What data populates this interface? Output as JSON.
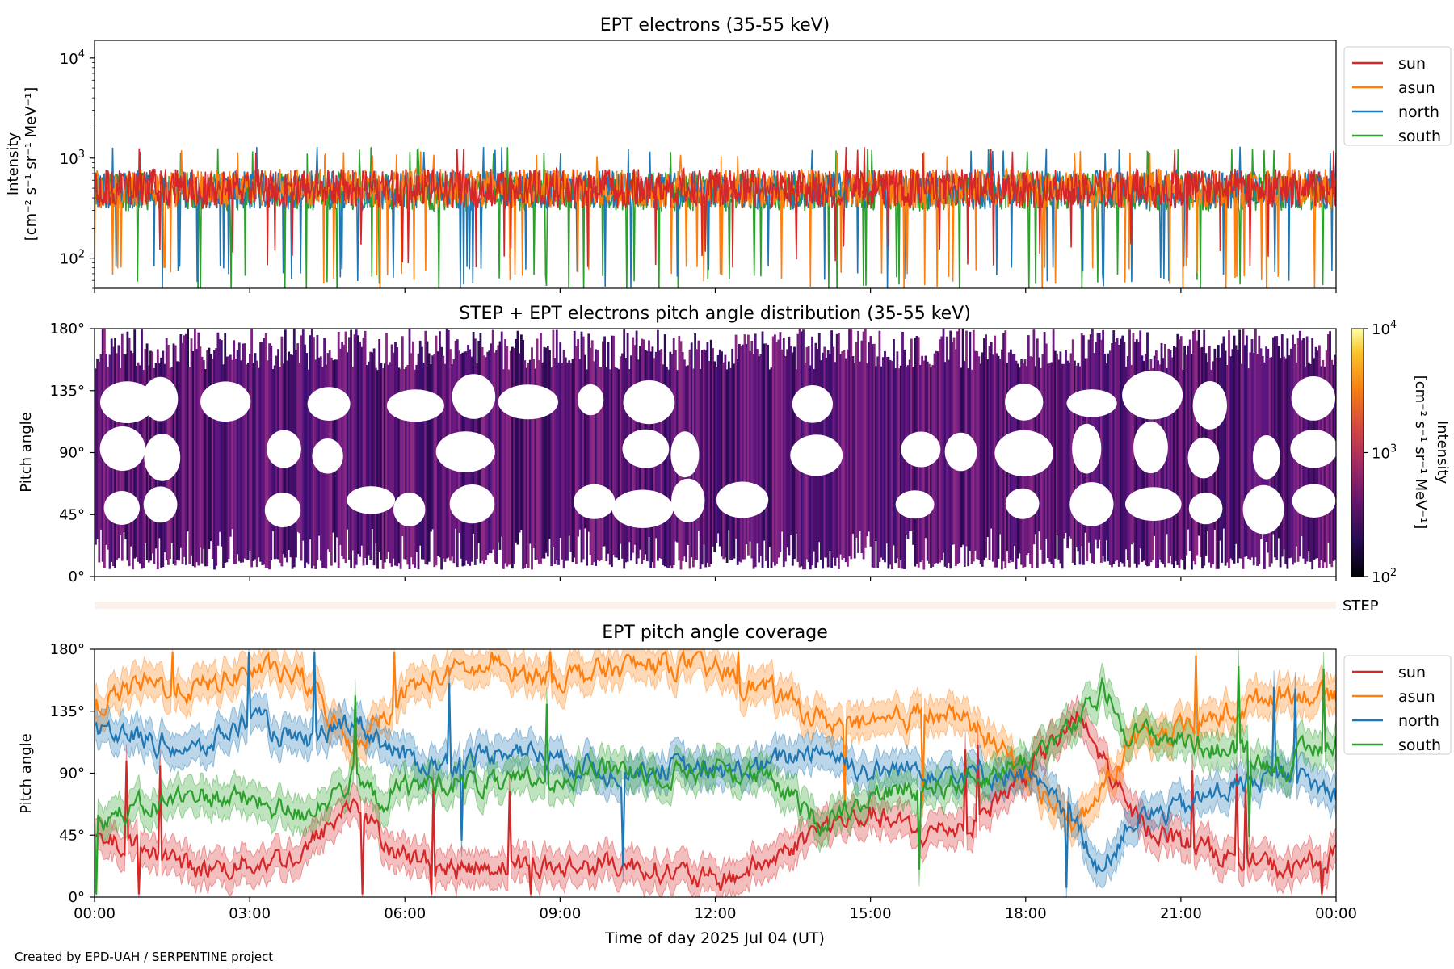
{
  "footer": "Created by EPD-UAH / SERPENTINE project",
  "xlabel": "Time of day 2025 Jul 04 (UT)",
  "x_ticks": [
    "00:00",
    "03:00",
    "06:00",
    "09:00",
    "12:00",
    "15:00",
    "18:00",
    "21:00",
    "00:00"
  ],
  "series_colors": {
    "sun": "#d62728",
    "asun": "#ff7f0e",
    "north": "#1f77b4",
    "south": "#2ca02c"
  },
  "chart_data": [
    {
      "type": "line",
      "title": "EPT electrons (35-55 keV)",
      "ylabel": "Intensity",
      "yunit": "[cm⁻² s⁻¹ sr⁻¹ MeV⁻¹]",
      "yscale": "log",
      "ylim": [
        50,
        15000
      ],
      "yticks": [
        {
          "exp": "2"
        },
        {
          "exp": "3"
        },
        {
          "exp": "4"
        }
      ],
      "x_range_hours": [
        0,
        24
      ],
      "legend": "outside-right",
      "series": [
        {
          "name": "sun",
          "typical_value": 500,
          "range": [
            100,
            1300
          ]
        },
        {
          "name": "asun",
          "typical_value": 500,
          "range": [
            60,
            1200
          ]
        },
        {
          "name": "north",
          "typical_value": 480,
          "range": [
            60,
            1300
          ]
        },
        {
          "name": "south",
          "typical_value": 460,
          "range": [
            50,
            1300
          ]
        }
      ]
    },
    {
      "type": "heatmap",
      "title": "STEP + EPT electrons pitch angle distribution (35-55 keV)",
      "ylabel": "Pitch angle",
      "yticks": [
        "0°",
        "45°",
        "90°",
        "135°",
        "180°"
      ],
      "ylim": [
        0,
        180
      ],
      "colorbar": {
        "label": "Intensity",
        "unit": "[cm⁻² s⁻¹ sr⁻¹ MeV⁻¹]",
        "scale": "log",
        "range": [
          100,
          10000
        ],
        "ticks": [
          {
            "exp": "2"
          },
          {
            "exp": "3"
          },
          {
            "exp": "4"
          }
        ],
        "colormap": "inferno"
      },
      "x_range_hours": [
        0,
        24
      ]
    },
    {
      "type": "heatmap",
      "title": "",
      "label": "STEP",
      "values": "empty"
    },
    {
      "type": "line",
      "title": "EPT pitch angle coverage",
      "ylabel": "Pitch angle",
      "yticks": [
        "0°",
        "45°",
        "90°",
        "135°",
        "180°"
      ],
      "ylim": [
        0,
        180
      ],
      "legend": "outside-right",
      "x_range_hours": [
        0,
        24
      ],
      "series": [
        {
          "name": "sun",
          "anchors": [
            [
              0,
              40
            ],
            [
              1,
              35
            ],
            [
              2,
              20
            ],
            [
              3,
              25
            ],
            [
              4,
              30
            ],
            [
              5,
              70
            ],
            [
              5.5,
              45
            ],
            [
              6,
              30
            ],
            [
              7,
              20
            ],
            [
              8,
              25
            ],
            [
              9,
              20
            ],
            [
              10,
              25
            ],
            [
              11,
              20
            ],
            [
              12,
              10
            ],
            [
              13,
              25
            ],
            [
              14,
              50
            ],
            [
              15,
              60
            ],
            [
              16,
              45
            ],
            [
              17,
              55
            ],
            [
              18,
              90
            ],
            [
              19,
              130
            ],
            [
              19.5,
              100
            ],
            [
              20,
              60
            ],
            [
              21,
              40
            ],
            [
              22,
              30
            ],
            [
              23,
              20
            ],
            [
              24,
              30
            ]
          ]
        },
        {
          "name": "asun",
          "anchors": [
            [
              0,
              140
            ],
            [
              1,
              155
            ],
            [
              2,
              150
            ],
            [
              3,
              165
            ],
            [
              4,
              160
            ],
            [
              5,
              110
            ],
            [
              5.5,
              130
            ],
            [
              6,
              150
            ],
            [
              7,
              165
            ],
            [
              8,
              165
            ],
            [
              9,
              160
            ],
            [
              10,
              165
            ],
            [
              11,
              170
            ],
            [
              12,
              165
            ],
            [
              13,
              150
            ],
            [
              14,
              130
            ],
            [
              15,
              120
            ],
            [
              16,
              135
            ],
            [
              17,
              125
            ],
            [
              18,
              90
            ],
            [
              19,
              50
            ],
            [
              19.5,
              80
            ],
            [
              20,
              110
            ],
            [
              21,
              120
            ],
            [
              22,
              135
            ],
            [
              23,
              150
            ],
            [
              24,
              145
            ]
          ]
        },
        {
          "name": "north",
          "anchors": [
            [
              0,
              125
            ],
            [
              1,
              115
            ],
            [
              2,
              105
            ],
            [
              3,
              130
            ],
            [
              4,
              110
            ],
            [
              5,
              130
            ],
            [
              5.5,
              115
            ],
            [
              6,
              100
            ],
            [
              7,
              95
            ],
            [
              8,
              110
            ],
            [
              9,
              100
            ],
            [
              10,
              90
            ],
            [
              11,
              95
            ],
            [
              12,
              90
            ],
            [
              13,
              95
            ],
            [
              14,
              110
            ],
            [
              15,
              90
            ],
            [
              16,
              95
            ],
            [
              17,
              90
            ],
            [
              18,
              90
            ],
            [
              19,
              50
            ],
            [
              19.5,
              20
            ],
            [
              20,
              55
            ],
            [
              21,
              65
            ],
            [
              22,
              80
            ],
            [
              23,
              90
            ],
            [
              24,
              75
            ]
          ]
        },
        {
          "name": "south",
          "anchors": [
            [
              0,
              55
            ],
            [
              1,
              65
            ],
            [
              2,
              75
            ],
            [
              3,
              70
            ],
            [
              4,
              60
            ],
            [
              5,
              85
            ],
            [
              5.5,
              70
            ],
            [
              6,
              80
            ],
            [
              7,
              85
            ],
            [
              8,
              80
            ],
            [
              9,
              90
            ],
            [
              10,
              95
            ],
            [
              11,
              90
            ],
            [
              12,
              95
            ],
            [
              13,
              85
            ],
            [
              14,
              55
            ],
            [
              15,
              75
            ],
            [
              16,
              80
            ],
            [
              17,
              85
            ],
            [
              18,
              100
            ],
            [
              19,
              125
            ],
            [
              19.5,
              150
            ],
            [
              20,
              120
            ],
            [
              21,
              115
            ],
            [
              22,
              105
            ],
            [
              23,
              95
            ],
            [
              24,
              115
            ]
          ]
        }
      ]
    }
  ]
}
